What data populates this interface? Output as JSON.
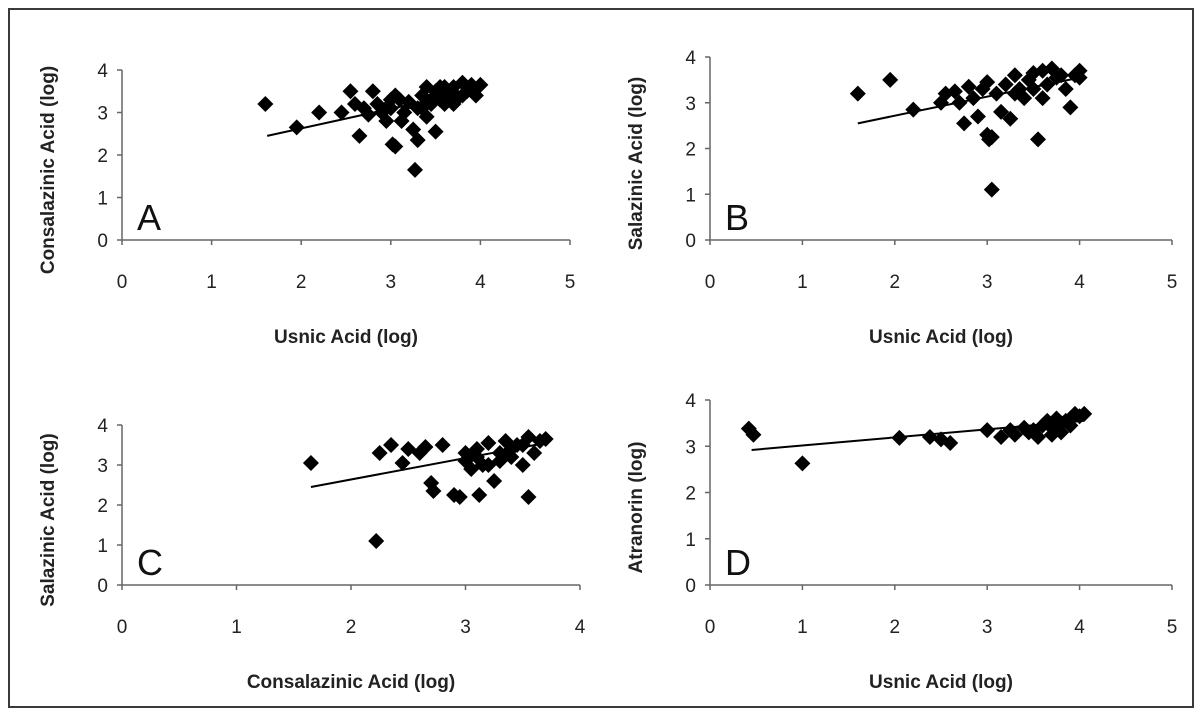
{
  "chart_data": [
    {
      "panel": "A",
      "type": "scatter",
      "xlabel": "Usnic Acid (log)",
      "ylabel": "Consalazinic Acid (log)",
      "xlim": [
        0,
        5
      ],
      "ylim": [
        0,
        4
      ],
      "xticks": [
        "0",
        "1",
        "2",
        "3",
        "4",
        "5"
      ],
      "yticks": [
        "0",
        "1",
        "2",
        "3",
        "4"
      ],
      "trendline": {
        "x": [
          1.62,
          4.0
        ],
        "y": [
          2.45,
          3.55
        ]
      },
      "points": [
        [
          1.6,
          3.2
        ],
        [
          1.95,
          2.65
        ],
        [
          2.2,
          3.0
        ],
        [
          2.45,
          3.0
        ],
        [
          2.55,
          3.5
        ],
        [
          2.6,
          3.2
        ],
        [
          2.65,
          2.45
        ],
        [
          2.7,
          3.1
        ],
        [
          2.75,
          2.95
        ],
        [
          2.8,
          3.5
        ],
        [
          2.85,
          3.2
        ],
        [
          2.9,
          3.0
        ],
        [
          2.95,
          2.8
        ],
        [
          3.0,
          3.1
        ],
        [
          3.02,
          2.25
        ],
        [
          3.05,
          2.2
        ],
        [
          3.05,
          3.4
        ],
        [
          3.1,
          3.3
        ],
        [
          3.12,
          2.8
        ],
        [
          3.15,
          3.0
        ],
        [
          3.2,
          3.25
        ],
        [
          3.25,
          2.6
        ],
        [
          3.27,
          1.65
        ],
        [
          3.3,
          2.35
        ],
        [
          3.3,
          3.1
        ],
        [
          3.35,
          3.4
        ],
        [
          3.4,
          3.6
        ],
        [
          3.45,
          3.2
        ],
        [
          3.5,
          2.55
        ],
        [
          3.5,
          3.5
        ],
        [
          3.55,
          3.3
        ],
        [
          3.6,
          3.6
        ],
        [
          3.65,
          3.45
        ],
        [
          3.7,
          3.6
        ],
        [
          3.75,
          3.35
        ],
        [
          3.8,
          3.7
        ],
        [
          3.85,
          3.5
        ],
        [
          3.9,
          3.65
        ],
        [
          3.95,
          3.4
        ],
        [
          4.0,
          3.65
        ],
        [
          3.35,
          3.1
        ],
        [
          3.4,
          2.9
        ],
        [
          3.45,
          3.3
        ],
        [
          3.55,
          3.6
        ],
        [
          3.6,
          3.2
        ],
        [
          3.7,
          3.2
        ],
        [
          3.8,
          3.4
        ],
        [
          3.9,
          3.55
        ],
        [
          3.0,
          3.3
        ],
        [
          2.95,
          3.1
        ]
      ],
      "annotation": "A"
    },
    {
      "panel": "B",
      "type": "scatter",
      "xlabel": "Usnic Acid (log)",
      "ylabel": "Salazinic Acid (log)",
      "xlim": [
        0,
        5
      ],
      "ylim": [
        0,
        4
      ],
      "xticks": [
        "0",
        "1",
        "2",
        "3",
        "4",
        "5"
      ],
      "yticks": [
        "0",
        "1",
        "2",
        "3",
        "4"
      ],
      "trendline": {
        "x": [
          1.6,
          4.0
        ],
        "y": [
          2.55,
          3.55
        ]
      },
      "points": [
        [
          1.6,
          3.2
        ],
        [
          1.95,
          3.5
        ],
        [
          2.2,
          2.85
        ],
        [
          2.5,
          3.0
        ],
        [
          2.55,
          3.2
        ],
        [
          2.65,
          3.25
        ],
        [
          2.7,
          3.0
        ],
        [
          2.75,
          2.55
        ],
        [
          2.8,
          3.35
        ],
        [
          2.85,
          3.1
        ],
        [
          2.9,
          2.7
        ],
        [
          2.95,
          3.3
        ],
        [
          3.0,
          3.45
        ],
        [
          3.0,
          2.3
        ],
        [
          3.02,
          2.2
        ],
        [
          3.05,
          2.25
        ],
        [
          3.05,
          1.1
        ],
        [
          3.1,
          3.2
        ],
        [
          3.15,
          2.8
        ],
        [
          3.2,
          3.4
        ],
        [
          3.25,
          2.65
        ],
        [
          3.3,
          3.6
        ],
        [
          3.35,
          3.3
        ],
        [
          3.4,
          3.1
        ],
        [
          3.45,
          3.5
        ],
        [
          3.5,
          3.3
        ],
        [
          3.55,
          2.2
        ],
        [
          3.6,
          3.7
        ],
        [
          3.65,
          3.4
        ],
        [
          3.7,
          3.75
        ],
        [
          3.75,
          3.55
        ],
        [
          3.8,
          3.6
        ],
        [
          3.85,
          3.3
        ],
        [
          3.9,
          2.9
        ],
        [
          3.95,
          3.6
        ],
        [
          4.0,
          3.55
        ],
        [
          4.0,
          3.7
        ],
        [
          3.5,
          3.65
        ],
        [
          3.3,
          3.2
        ],
        [
          3.6,
          3.1
        ]
      ],
      "annotation": "B"
    },
    {
      "panel": "C",
      "type": "scatter",
      "xlabel": "Consalazinic Acid (log)",
      "ylabel": "Salazinic Acid (log)",
      "xlim": [
        0,
        4
      ],
      "ylim": [
        0,
        4
      ],
      "xticks": [
        "0",
        "1",
        "2",
        "3",
        "4"
      ],
      "yticks": [
        "0",
        "1",
        "2",
        "3",
        "4"
      ],
      "trendline": {
        "x": [
          1.65,
          3.7
        ],
        "y": [
          2.45,
          3.55
        ]
      },
      "points": [
        [
          1.65,
          3.05
        ],
        [
          2.22,
          1.1
        ],
        [
          2.25,
          3.3
        ],
        [
          2.35,
          3.5
        ],
        [
          2.45,
          3.05
        ],
        [
          2.5,
          3.4
        ],
        [
          2.6,
          3.3
        ],
        [
          2.65,
          3.45
        ],
        [
          2.7,
          2.55
        ],
        [
          2.72,
          2.35
        ],
        [
          2.8,
          3.5
        ],
        [
          2.9,
          2.25
        ],
        [
          2.95,
          2.2
        ],
        [
          3.0,
          3.3
        ],
        [
          3.05,
          2.9
        ],
        [
          3.1,
          3.4
        ],
        [
          3.12,
          2.25
        ],
        [
          3.15,
          3.0
        ],
        [
          3.2,
          3.55
        ],
        [
          3.25,
          2.6
        ],
        [
          3.3,
          3.3
        ],
        [
          3.35,
          3.6
        ],
        [
          3.4,
          3.2
        ],
        [
          3.45,
          3.5
        ],
        [
          3.5,
          3.0
        ],
        [
          3.55,
          2.2
        ],
        [
          3.55,
          3.7
        ],
        [
          3.6,
          3.3
        ],
        [
          3.65,
          3.6
        ],
        [
          3.7,
          3.65
        ],
        [
          3.0,
          3.1
        ],
        [
          3.1,
          3.2
        ],
        [
          3.2,
          3.0
        ],
        [
          3.3,
          3.1
        ],
        [
          3.4,
          3.4
        ],
        [
          3.5,
          3.5
        ]
      ],
      "annotation": "C"
    },
    {
      "panel": "D",
      "type": "scatter",
      "xlabel": "Usnic Acid (log)",
      "ylabel": "Atranorin (log)",
      "xlim": [
        0,
        5
      ],
      "ylim": [
        0,
        4
      ],
      "xticks": [
        "0",
        "1",
        "2",
        "3",
        "4",
        "5"
      ],
      "yticks": [
        "0",
        "1",
        "2",
        "3",
        "4"
      ],
      "trendline": {
        "x": [
          0.45,
          4.05
        ],
        "y": [
          2.92,
          3.55
        ]
      },
      "points": [
        [
          0.42,
          3.38
        ],
        [
          0.47,
          3.25
        ],
        [
          1.0,
          2.63
        ],
        [
          2.05,
          3.18
        ],
        [
          2.38,
          3.2
        ],
        [
          2.5,
          3.15
        ],
        [
          2.6,
          3.07
        ],
        [
          3.0,
          3.35
        ],
        [
          3.15,
          3.2
        ],
        [
          3.25,
          3.35
        ],
        [
          3.3,
          3.25
        ],
        [
          3.4,
          3.4
        ],
        [
          3.45,
          3.3
        ],
        [
          3.5,
          3.35
        ],
        [
          3.55,
          3.2
        ],
        [
          3.6,
          3.45
        ],
        [
          3.65,
          3.55
        ],
        [
          3.7,
          3.25
        ],
        [
          3.75,
          3.6
        ],
        [
          3.8,
          3.5
        ],
        [
          3.85,
          3.55
        ],
        [
          3.9,
          3.6
        ],
        [
          3.95,
          3.7
        ],
        [
          4.0,
          3.65
        ],
        [
          4.05,
          3.7
        ],
        [
          3.7,
          3.4
        ],
        [
          3.8,
          3.3
        ],
        [
          3.9,
          3.45
        ]
      ],
      "annotation": "D"
    }
  ]
}
